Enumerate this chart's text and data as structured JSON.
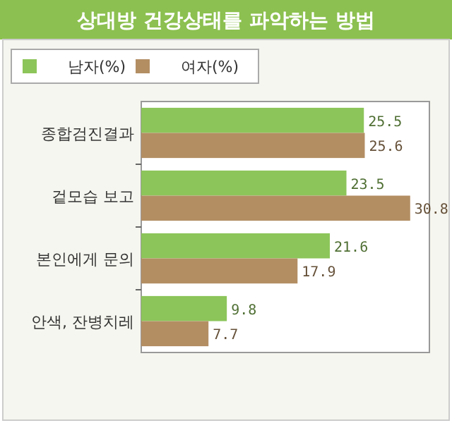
{
  "chart_data": {
    "type": "bar",
    "orientation": "horizontal",
    "title": "상대방 건강상태를 파악하는 방법",
    "categories": [
      "종합검진결과",
      "겉모습 보고",
      "본인에게 문의",
      "안색, 잔병치레"
    ],
    "series": [
      {
        "name": "남자(%)",
        "color": "#8cc55a",
        "values": [
          25.5,
          23.5,
          21.6,
          9.8
        ]
      },
      {
        "name": "여자(%)",
        "color": "#b38e63",
        "values": [
          25.6,
          30.8,
          17.9,
          7.7
        ]
      }
    ],
    "data_labels": true,
    "legend": "top left"
  }
}
